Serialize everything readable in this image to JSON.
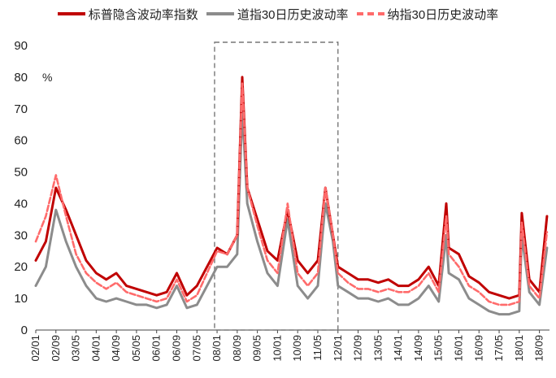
{
  "chart_data": {
    "type": "line",
    "title": "",
    "unit_label": "%",
    "ylim": [
      0,
      90
    ],
    "yticks": [
      "0",
      "10",
      "20",
      "30",
      "40",
      "50",
      "60",
      "70",
      "80",
      "90"
    ],
    "xticks": [
      "02/01",
      "02/09",
      "03/05",
      "04/01",
      "04/09",
      "05/05",
      "06/01",
      "06/09",
      "07/05",
      "08/01",
      "08/09",
      "09/05",
      "10/01",
      "10/09",
      "11/05",
      "12/01",
      "12/09",
      "13/05",
      "14/01",
      "14/09",
      "15/05",
      "16/01",
      "16/09",
      "17/05",
      "18/01",
      "18/09"
    ],
    "highlight_box": {
      "x_from": "07/12",
      "x_to": "12/01"
    },
    "legend_position": "top",
    "colors": {
      "spx_iv": "#c00000",
      "djia_hv": "#8c8c8c",
      "ndx_hv": "#ff6b6b"
    },
    "series": [
      {
        "name": "标普隐含波动率指数",
        "style": "solid",
        "color": "#c00000",
        "x": [
          "02/01",
          "02/05",
          "02/09",
          "03/01",
          "03/05",
          "03/09",
          "04/01",
          "04/05",
          "04/09",
          "05/01",
          "05/05",
          "05/09",
          "06/01",
          "06/05",
          "06/09",
          "07/01",
          "07/05",
          "07/09",
          "08/01",
          "08/05",
          "08/09",
          "08/11",
          "09/01",
          "09/05",
          "09/09",
          "10/01",
          "10/05",
          "10/09",
          "11/01",
          "11/05",
          "11/08",
          "11/11",
          "12/01",
          "12/05",
          "12/09",
          "13/01",
          "13/05",
          "13/09",
          "14/01",
          "14/05",
          "14/09",
          "15/01",
          "15/05",
          "15/08",
          "15/09",
          "16/01",
          "16/05",
          "16/09",
          "17/01",
          "17/05",
          "17/09",
          "18/01",
          "18/02",
          "18/05",
          "18/09",
          "18/12"
        ],
        "y": [
          22,
          28,
          45,
          38,
          30,
          22,
          18,
          16,
          18,
          14,
          13,
          12,
          11,
          12,
          18,
          11,
          14,
          20,
          26,
          24,
          30,
          80,
          45,
          35,
          25,
          22,
          38,
          22,
          18,
          22,
          45,
          30,
          20,
          18,
          16,
          16,
          15,
          16,
          14,
          14,
          16,
          20,
          14,
          40,
          26,
          24,
          17,
          15,
          12,
          11,
          10,
          11,
          37,
          16,
          12,
          36
        ]
      },
      {
        "name": "道指30日历史波动率",
        "style": "solid",
        "color": "#8c8c8c",
        "x": [
          "02/01",
          "02/05",
          "02/09",
          "03/01",
          "03/05",
          "03/09",
          "04/01",
          "04/05",
          "04/09",
          "05/01",
          "05/05",
          "05/09",
          "06/01",
          "06/05",
          "06/09",
          "07/01",
          "07/05",
          "07/09",
          "08/01",
          "08/05",
          "08/09",
          "08/11",
          "09/01",
          "09/05",
          "09/09",
          "10/01",
          "10/05",
          "10/09",
          "11/01",
          "11/05",
          "11/08",
          "11/11",
          "12/01",
          "12/05",
          "12/09",
          "13/01",
          "13/05",
          "13/09",
          "14/01",
          "14/05",
          "14/09",
          "15/01",
          "15/05",
          "15/08",
          "15/09",
          "16/01",
          "16/05",
          "16/09",
          "17/01",
          "17/05",
          "17/09",
          "18/01",
          "18/02",
          "18/05",
          "18/09",
          "18/12"
        ],
        "y": [
          14,
          20,
          38,
          28,
          20,
          14,
          10,
          9,
          10,
          9,
          8,
          8,
          7,
          8,
          14,
          7,
          8,
          14,
          20,
          20,
          24,
          70,
          40,
          28,
          18,
          14,
          35,
          14,
          10,
          14,
          40,
          28,
          14,
          12,
          10,
          10,
          9,
          10,
          8,
          8,
          10,
          14,
          9,
          30,
          18,
          16,
          10,
          8,
          6,
          5,
          5,
          6,
          30,
          12,
          8,
          26
        ]
      },
      {
        "name": "纳指30日历史波动率",
        "style": "dashed",
        "color": "#ff6b6b",
        "x": [
          "02/01",
          "02/05",
          "02/09",
          "03/01",
          "03/05",
          "03/09",
          "04/01",
          "04/05",
          "04/09",
          "05/01",
          "05/05",
          "05/09",
          "06/01",
          "06/05",
          "06/09",
          "07/01",
          "07/05",
          "07/09",
          "08/01",
          "08/05",
          "08/09",
          "08/11",
          "09/01",
          "09/05",
          "09/09",
          "10/01",
          "10/05",
          "10/09",
          "11/01",
          "11/05",
          "11/08",
          "11/11",
          "12/01",
          "12/05",
          "12/09",
          "13/01",
          "13/05",
          "13/09",
          "14/01",
          "14/05",
          "14/09",
          "15/01",
          "15/05",
          "15/08",
          "15/09",
          "16/01",
          "16/05",
          "16/09",
          "17/01",
          "17/05",
          "17/09",
          "18/01",
          "18/02",
          "18/05",
          "18/09",
          "18/12"
        ],
        "y": [
          28,
          36,
          49,
          36,
          24,
          18,
          15,
          13,
          15,
          12,
          11,
          10,
          9,
          10,
          16,
          9,
          11,
          18,
          25,
          24,
          30,
          78,
          45,
          33,
          22,
          18,
          40,
          18,
          14,
          18,
          45,
          30,
          18,
          15,
          13,
          13,
          12,
          13,
          12,
          12,
          14,
          18,
          12,
          36,
          24,
          20,
          14,
          12,
          9,
          8,
          8,
          9,
          34,
          14,
          10,
          31
        ]
      }
    ]
  }
}
